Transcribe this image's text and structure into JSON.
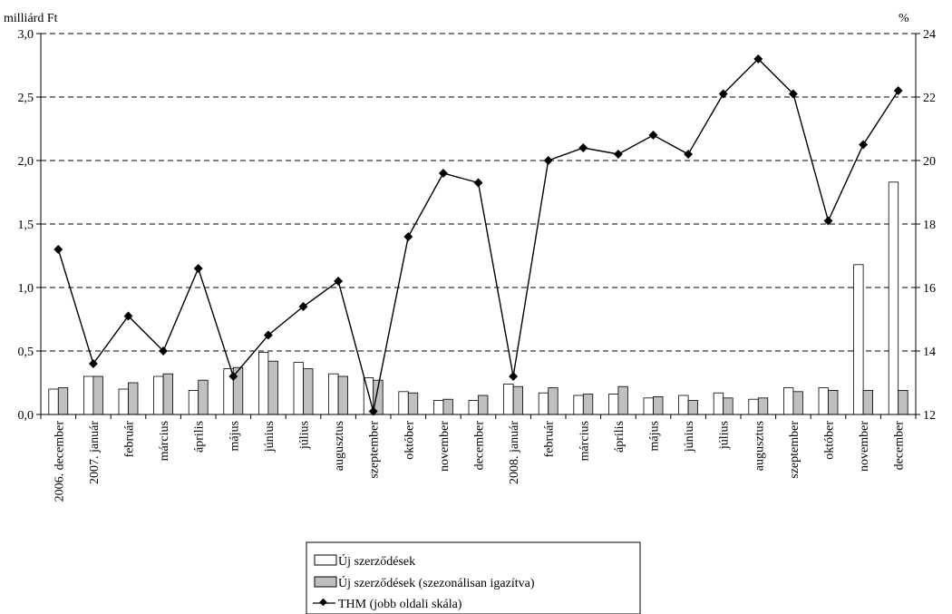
{
  "chart_data": {
    "type": "bar",
    "y_left_unit": "milliárd Ft",
    "y_right_unit": "%",
    "y_left_range": [
      0,
      3.0
    ],
    "y_left_ticks": [
      "0,0",
      "0,5",
      "1,0",
      "1,5",
      "2,0",
      "2,5",
      "3,0"
    ],
    "y_right_range": [
      12,
      24
    ],
    "y_right_ticks": [
      "12",
      "14",
      "16",
      "18",
      "20",
      "22",
      "24"
    ],
    "grid": "dashed horizontal",
    "legend_position": "bottom-center",
    "categories": [
      "2006. december",
      "2007. január",
      "február",
      "március",
      "április",
      "május",
      "június",
      "július",
      "augusztus",
      "szeptember",
      "október",
      "november",
      "december",
      "2008. január",
      "február",
      "március",
      "április",
      "május",
      "június",
      "július",
      "augusztus",
      "szeptember",
      "október",
      "november",
      "december"
    ],
    "series": [
      {
        "name": "Új szerződések",
        "type": "bar",
        "axis": "left",
        "color": "#ffffff",
        "values": [
          0.2,
          0.3,
          0.2,
          0.3,
          0.19,
          0.36,
          0.49,
          0.41,
          0.32,
          0.29,
          0.18,
          0.11,
          0.11,
          0.24,
          0.17,
          0.15,
          0.16,
          0.13,
          0.15,
          0.17,
          0.12,
          0.21,
          0.21,
          1.18,
          1.83
        ]
      },
      {
        "name": "Új szerződések (szezonálisan igazítva)",
        "type": "bar",
        "axis": "left",
        "color": "#bfbfbf",
        "values": [
          0.21,
          0.3,
          0.25,
          0.32,
          0.27,
          0.37,
          0.42,
          0.36,
          0.3,
          0.27,
          0.17,
          0.12,
          0.15,
          0.22,
          0.21,
          0.16,
          0.22,
          0.14,
          0.11,
          0.13,
          0.13,
          0.18,
          0.19,
          0.19,
          0.19
        ]
      },
      {
        "name": "THM (jobb oldali skála)",
        "type": "line",
        "axis": "right",
        "color": "#000000",
        "values": [
          17.2,
          13.6,
          15.1,
          14.0,
          16.6,
          13.2,
          14.5,
          15.4,
          16.2,
          12.1,
          17.6,
          19.6,
          19.3,
          13.2,
          20.0,
          20.4,
          20.2,
          20.8,
          20.2,
          22.1,
          23.2,
          22.1,
          18.1,
          20.5,
          22.2
        ]
      }
    ]
  }
}
